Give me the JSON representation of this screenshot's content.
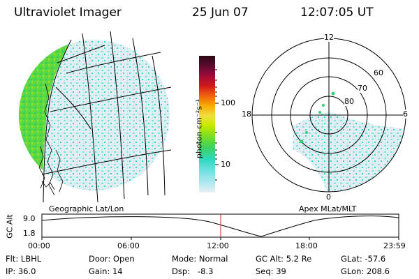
{
  "header": {
    "instrument": "Ultraviolet Imager",
    "date": "25 Jun 07",
    "time": "12:07:05 UT"
  },
  "colorbar": {
    "label": "photon cm⁻²s⁻¹",
    "ticks": [
      "100",
      "10"
    ],
    "colors": [
      "#2a0a14",
      "#5a0a30",
      "#9a0a3a",
      "#d01a1a",
      "#f06010",
      "#f8a800",
      "#f0e040",
      "#c8e800",
      "#80e020",
      "#40d060",
      "#30d8c0",
      "#70e0e0",
      "#b0e8ee",
      "#e8f0f4"
    ]
  },
  "polar": {
    "mlt_labels": [
      "12",
      "6",
      "0",
      "18"
    ],
    "lat_labels": [
      "60",
      "70",
      "80"
    ]
  },
  "panels": {
    "left_label": "Geographic Lat/Lon",
    "right_label": "Apex MLat/MLT"
  },
  "altitude_plot": {
    "ylabel": "GC Alt",
    "yticks": [
      "9.0",
      "1.8"
    ],
    "xticks": [
      "00:00",
      "06:00",
      "12:00",
      "18:00",
      "23:59"
    ],
    "marker_time": "12:07"
  },
  "footer": {
    "flt": "Flt: LBHL",
    "ip": "IP: 36.0",
    "door": "Door: Open",
    "gain": "Gain: 14",
    "mode": "Mode: Normal",
    "dsp": "Dsp:   -8.3",
    "gcalt": "GC Alt: 5.2 Re",
    "seq": "Seq: 39",
    "glat": "GLat: -57.6",
    "glon": "GLon: 208.6"
  },
  "colors": {
    "background": "#ffffff",
    "grid": "#000000",
    "marker": "#cc2020"
  }
}
